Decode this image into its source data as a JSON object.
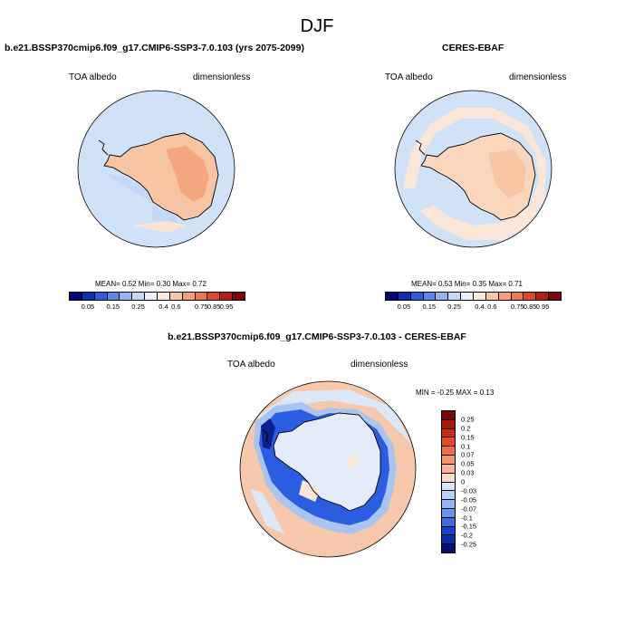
{
  "main_title": "DJF",
  "panels": [
    {
      "title": "b.e21.BSSP370cmip6.f09_g17.CMIP6-SSP3-7.0.103 (yrs 2075-2099)",
      "var_label": "TOA albedo",
      "units_label": "dimensionless",
      "stats": "MEAN=   0.52  Min=   0.30  Max=   0.72"
    },
    {
      "title": "CERES-EBAF",
      "var_label": "TOA albedo",
      "units_label": "dimensionless",
      "stats": "MEAN=   0.53  Min=   0.35  Max=   0.71"
    },
    {
      "title": "b.e21.BSSP370cmip6.f09_g17.CMIP6-SSP3-7.0.103 - CERES-EBAF",
      "var_label": "TOA albedo",
      "units_label": "dimensionless",
      "stats": "MIN =  -0.25 MAX =   0.13"
    }
  ],
  "colorbar_abs": {
    "labels": [
      "0.05",
      "0.15",
      "0.25",
      "0.4",
      "0.6",
      "0.75",
      "0.85",
      "0.95"
    ],
    "colors": [
      "#04047a",
      "#0c2fb6",
      "#2c5ce0",
      "#5c88ec",
      "#94b4f4",
      "#c6d8f8",
      "#ecf0fa",
      "#fbe8dc",
      "#f7c8a8",
      "#f3a07a",
      "#ec764e",
      "#e0482a",
      "#b81e10",
      "#7a0808"
    ]
  },
  "colorbar_diff": {
    "labels": [
      "0.25",
      "0.2",
      "0.15",
      "0.1",
      "0.07",
      "0.05",
      "0.03",
      "0",
      "-0.03",
      "-0.05",
      "-0.07",
      "-0.1",
      "-0.15",
      "-0.2",
      "-0.25"
    ],
    "colors": [
      "#7a0808",
      "#a81810",
      "#cc2a18",
      "#e6482a",
      "#ef6e4a",
      "#f49470",
      "#f8b896",
      "#fcdcc6",
      "#d8e6f8",
      "#b8d0f6",
      "#92b4f2",
      "#6a94ec",
      "#3e6ce0",
      "#1444cc",
      "#0a2ca8",
      "#04106e"
    ]
  }
}
